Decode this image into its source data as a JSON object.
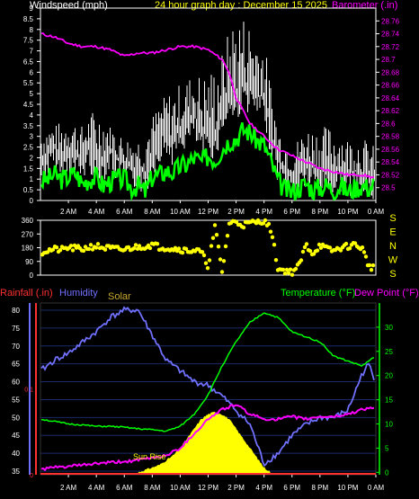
{
  "header": {
    "left_title": "Windspeed (mph)",
    "center_title": "24 hour graph day : December 15 2025",
    "right_title": "Barometer (.in)"
  },
  "colors": {
    "background": "#000000",
    "frame": "#ffffff",
    "windspeed": "#ffffff",
    "gust_fill": "#ffffff",
    "avg_speed": "#00ff00",
    "barometer": "#ff00ff",
    "direction": "#ffff00",
    "rain": "#ff3030",
    "humidity": "#7070ff",
    "solar": "#ffff00",
    "temperature": "#00ff00",
    "dewpoint": "#ff00ff",
    "grid": "#1a2a6a"
  },
  "time_labels": [
    "2 AM",
    "4 AM",
    "6 AM",
    "8 AM",
    "10 AM",
    "12 PM",
    "2 PM",
    "4 PM",
    "6 PM",
    "8 PM",
    "10 PM",
    "0 AM"
  ],
  "direction_side_labels": [
    "S",
    "E",
    "N",
    "W",
    "S"
  ],
  "bottom_header": {
    "rain": "Rainfall (.in)",
    "humidity": "Humidity",
    "solar": "Solar",
    "temperature": "Temperature (°F)",
    "dewpoint": "Dew Point (°F)"
  },
  "annotation": "Sun Rise",
  "chart_data": [
    {
      "type": "line",
      "name": "wind",
      "x_unit": "hour",
      "x_range": [
        0,
        24
      ],
      "y_left_ticks": [
        "0",
        "0.5",
        "1",
        "1.5",
        "2",
        "2.5",
        "3",
        "3.5",
        "4",
        "4.5",
        "5",
        "5.5",
        "6",
        "6.5",
        "7",
        "7.5",
        "8",
        "8.5",
        "9"
      ],
      "ylim_left": [
        0,
        9
      ],
      "y_right_ticks": [
        "28.5",
        "28.52",
        "28.54",
        "28.56",
        "28.58",
        "28.6",
        "28.62",
        "28.64",
        "28.66",
        "28.68",
        "28.7",
        "28.72",
        "28.74",
        "28.76"
      ],
      "ylim_right": [
        28.48,
        28.78
      ],
      "series": [
        {
          "name": "Windspeed",
          "axis": "left",
          "x": [
            0,
            0.5,
            1,
            1.5,
            2,
            2.5,
            3,
            3.5,
            4,
            4.5,
            5,
            5.5,
            6,
            6.5,
            7,
            7.5,
            8,
            8.5,
            9,
            9.5,
            10,
            10.5,
            11,
            11.5,
            12,
            12.5,
            13,
            13.5,
            14,
            14.5,
            15,
            15.5,
            16,
            16.5,
            17,
            17.5,
            18,
            18.5,
            19,
            19.5,
            20,
            20.5,
            21,
            21.5,
            22,
            22.5,
            23,
            23.5,
            24
          ],
          "values": [
            1.8,
            2.2,
            2.5,
            1.9,
            2.4,
            2.2,
            2.0,
            2.6,
            1.8,
            2.1,
            2.5,
            1.9,
            1.8,
            1.5,
            1.6,
            1.3,
            2.2,
            3.0,
            3.2,
            2.8,
            3.4,
            3.6,
            4.0,
            3.0,
            3.3,
            3.0,
            4.2,
            5.0,
            4.8,
            5.5,
            5.2,
            5.0,
            4.8,
            3.2,
            2.0,
            1.5,
            1.2,
            1.5,
            1.8,
            1.6,
            1.4,
            1.5,
            1.3,
            1.6,
            1.2,
            1.4,
            1.3,
            1.2,
            1.1
          ]
        },
        {
          "name": "Gust",
          "axis": "left",
          "x": [
            0,
            1,
            2,
            3,
            4,
            5,
            6,
            7,
            8,
            9,
            10,
            11,
            12,
            13,
            14,
            15,
            16,
            17,
            18,
            19,
            20,
            21,
            22,
            23,
            24
          ],
          "values": [
            3.5,
            3.5,
            4.0,
            3.5,
            4.5,
            3.5,
            3.0,
            3.0,
            4.0,
            5.0,
            5.5,
            6.0,
            6.0,
            7.0,
            9.0,
            8.5,
            7.5,
            3.5,
            2.5,
            3.5,
            3.5,
            3.5,
            3.0,
            3.0,
            2.5
          ]
        },
        {
          "name": "Average",
          "axis": "left",
          "x": [
            0,
            0.5,
            1,
            1.5,
            2,
            2.5,
            3,
            3.5,
            4,
            4.5,
            5,
            5.5,
            6,
            6.5,
            7,
            7.5,
            8,
            8.5,
            9,
            9.5,
            10,
            10.5,
            11,
            11.5,
            12,
            12.5,
            13,
            13.5,
            14,
            14.5,
            15,
            15.5,
            16,
            16.5,
            17,
            17.5,
            18,
            18.5,
            19,
            19.5,
            20,
            20.5,
            21,
            21.5,
            22,
            22.5,
            23,
            23.5,
            24
          ],
          "values": [
            0.9,
            1.0,
            1.2,
            1.0,
            1.1,
            1.3,
            0.8,
            1.0,
            1.1,
            0.7,
            0.9,
            1.0,
            1.0,
            0.6,
            0.7,
            0.4,
            1.1,
            1.2,
            1.4,
            1.3,
            1.6,
            1.7,
            2.0,
            1.8,
            2.1,
            1.9,
            2.4,
            2.8,
            2.9,
            3.3,
            3.2,
            2.8,
            2.6,
            1.8,
            0.9,
            0.5,
            0.4,
            0.6,
            0.8,
            0.5,
            0.6,
            0.7,
            0.5,
            0.7,
            0.4,
            0.6,
            0.7,
            0.6,
            0.8
          ]
        },
        {
          "name": "Barometer",
          "axis": "right",
          "x": [
            0,
            1,
            2,
            3,
            4,
            5,
            6,
            7,
            8,
            9,
            10,
            11,
            12,
            13,
            13.5,
            14,
            15,
            16,
            16.5,
            17,
            18,
            19,
            20,
            21,
            22,
            23,
            24
          ],
          "values": [
            28.74,
            28.735,
            28.725,
            28.72,
            28.72,
            28.715,
            28.705,
            28.71,
            28.71,
            28.715,
            28.72,
            28.72,
            28.715,
            28.7,
            28.68,
            28.64,
            28.6,
            28.58,
            28.57,
            28.56,
            28.55,
            28.54,
            28.53,
            28.525,
            28.52,
            28.52,
            28.515
          ]
        }
      ]
    },
    {
      "type": "scatter",
      "name": "wind_direction",
      "x_unit": "hour",
      "x_range": [
        0,
        24
      ],
      "y_ticks": [
        "360",
        "270",
        "180",
        "90",
        "0"
      ],
      "ylim": [
        0,
        360
      ],
      "x": [
        0,
        0.5,
        1,
        1.5,
        2,
        2.5,
        3,
        3.5,
        4,
        4.5,
        5,
        5.5,
        6,
        6.5,
        7,
        7.5,
        8,
        8.5,
        9,
        9.5,
        10,
        10.5,
        11,
        11.5,
        12,
        12.5,
        13,
        13.5,
        14,
        14.5,
        15,
        15.5,
        16,
        16.5,
        17,
        17.5,
        18,
        18.5,
        19,
        19.5,
        20,
        20.5,
        21,
        21.5,
        22,
        22.5,
        23,
        23.5,
        24
      ],
      "values": [
        150,
        160,
        170,
        165,
        180,
        175,
        170,
        185,
        190,
        180,
        175,
        170,
        165,
        180,
        185,
        190,
        200,
        185,
        180,
        175,
        170,
        160,
        165,
        150,
        60,
        320,
        20,
        340,
        350,
        330,
        340,
        350,
        360,
        300,
        40,
        30,
        20,
        60,
        200,
        140,
        200,
        170,
        160,
        180,
        190,
        200,
        180,
        60,
        40
      ]
    },
    {
      "type": "line",
      "name": "climate",
      "x_unit": "hour",
      "x_range": [
        0,
        24
      ],
      "y_left_ticks": [
        "35",
        "40",
        "45",
        "50",
        "55",
        "60",
        "65",
        "70",
        "75",
        "80"
      ],
      "ylim_left": [
        34,
        82
      ],
      "y_right_ticks": [
        "0",
        "5",
        "10",
        "15",
        "20",
        "25",
        "30"
      ],
      "ylim_right": [
        -0.5,
        35
      ],
      "rain_ticks": [
        "0",
        "0.1"
      ],
      "series": [
        {
          "name": "Humidity",
          "axis": "left",
          "x": [
            0,
            1,
            2,
            3,
            4,
            5,
            6,
            7,
            8,
            9,
            10,
            11,
            12,
            13,
            14,
            15,
            16,
            17,
            18,
            19,
            20,
            21,
            22,
            23,
            23.5,
            24
          ],
          "values": [
            63,
            66,
            68,
            71,
            74,
            78,
            80,
            80,
            73,
            66,
            63,
            60,
            59,
            56,
            52,
            48,
            37,
            40,
            45,
            48,
            50,
            50,
            52,
            62,
            65,
            59
          ]
        },
        {
          "name": "Temperature",
          "axis": "right",
          "x": [
            0,
            1,
            2,
            3,
            4,
            5,
            6,
            7,
            8,
            9,
            10,
            11,
            12,
            13,
            14,
            15,
            16,
            17,
            18,
            19,
            20,
            21,
            22,
            23,
            24
          ],
          "values": [
            11,
            10.5,
            10,
            9.8,
            9.5,
            9.5,
            9.3,
            9.0,
            8.8,
            8.5,
            9.5,
            12,
            16,
            22,
            27,
            31,
            33,
            32,
            29,
            28,
            27,
            24,
            23,
            22,
            24
          ]
        },
        {
          "name": "Dew Point",
          "axis": "right",
          "x": [
            0,
            1,
            2,
            3,
            4,
            5,
            6,
            7,
            8,
            9,
            10,
            11,
            12,
            13,
            14,
            15,
            16,
            17,
            18,
            19,
            20,
            21,
            22,
            23,
            24
          ],
          "values": [
            0.6,
            1.0,
            1.2,
            1.5,
            1.8,
            2.0,
            2.2,
            2.5,
            3.0,
            3.5,
            5.0,
            8.0,
            11,
            13,
            14,
            12,
            11,
            11,
            11.5,
            11,
            11.5,
            11.5,
            12,
            13,
            13.5
          ]
        },
        {
          "name": "Solar",
          "axis": "right",
          "x": [
            7,
            7.5,
            8,
            8.5,
            9,
            9.5,
            10,
            10.5,
            11,
            11.5,
            12,
            12.5,
            13,
            13.5,
            14,
            14.5,
            15,
            15.5,
            16,
            16.5
          ],
          "values": [
            0,
            0.5,
            1,
            1.5,
            2.5,
            3.5,
            5,
            7,
            9,
            11,
            12,
            12.5,
            12,
            11,
            9,
            7,
            5,
            3,
            1,
            0
          ]
        },
        {
          "name": "Rainfall",
          "axis": "rain",
          "x": [
            0,
            24
          ],
          "values": [
            0,
            0
          ]
        }
      ]
    }
  ]
}
